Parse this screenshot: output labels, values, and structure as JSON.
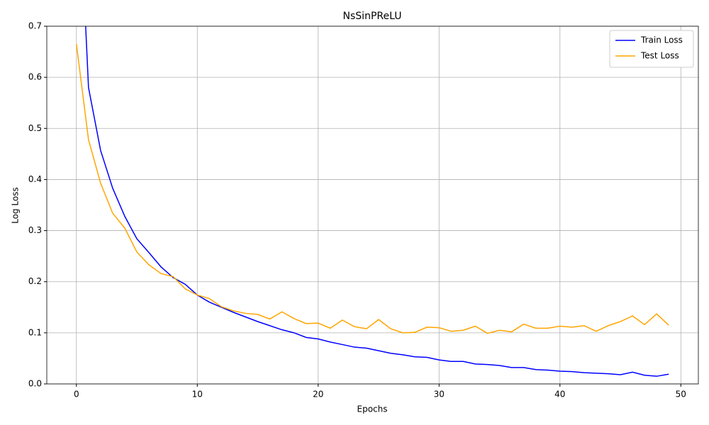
{
  "chart_data": {
    "type": "line",
    "title": "NsSinPReLU",
    "x_label": "Epochs",
    "y_label": "Log Loss",
    "x": [
      0,
      1,
      2,
      3,
      4,
      5,
      6,
      7,
      8,
      9,
      10,
      11,
      12,
      13,
      14,
      15,
      16,
      17,
      18,
      19,
      20,
      21,
      22,
      23,
      24,
      25,
      26,
      27,
      28,
      29,
      30,
      31,
      32,
      33,
      34,
      35,
      36,
      37,
      38,
      39,
      40,
      41,
      42,
      43,
      44,
      45,
      46,
      47,
      48,
      49
    ],
    "series": [
      {
        "name": "Train Loss",
        "color": "#0000ff",
        "values": [
          1.09,
          0.58,
          0.457,
          0.383,
          0.328,
          0.284,
          0.257,
          0.229,
          0.208,
          0.195,
          0.174,
          0.16,
          0.15,
          0.14,
          0.131,
          0.122,
          0.114,
          0.106,
          0.1,
          0.091,
          0.088,
          0.082,
          0.077,
          0.072,
          0.07,
          0.065,
          0.06,
          0.057,
          0.053,
          0.052,
          0.047,
          0.044,
          0.044,
          0.039,
          0.038,
          0.036,
          0.032,
          0.032,
          0.028,
          0.027,
          0.025,
          0.024,
          0.022,
          0.021,
          0.02,
          0.018,
          0.023,
          0.017,
          0.015,
          0.019
        ]
      },
      {
        "name": "Test Loss",
        "color": "#ffa500",
        "values": [
          0.665,
          0.478,
          0.393,
          0.334,
          0.305,
          0.258,
          0.233,
          0.216,
          0.21,
          0.186,
          0.174,
          0.167,
          0.151,
          0.143,
          0.138,
          0.136,
          0.127,
          0.141,
          0.128,
          0.118,
          0.119,
          0.109,
          0.125,
          0.112,
          0.108,
          0.126,
          0.108,
          0.1,
          0.101,
          0.111,
          0.11,
          0.103,
          0.105,
          0.113,
          0.099,
          0.105,
          0.102,
          0.117,
          0.109,
          0.109,
          0.113,
          0.111,
          0.114,
          0.103,
          0.114,
          0.122,
          0.133,
          0.116,
          0.137,
          0.115
        ]
      }
    ],
    "xlim": [
      -2.45,
      51.45
    ],
    "ylim": [
      0,
      0.7
    ],
    "xticks": [
      0,
      10,
      20,
      30,
      40,
      50
    ],
    "yticks": [
      {
        "value": 0,
        "label": "0.0"
      },
      0.1,
      0.2,
      0.3,
      0.4,
      0.5,
      0.6,
      0.7
    ],
    "grid": true,
    "legend": "upper-right"
  }
}
